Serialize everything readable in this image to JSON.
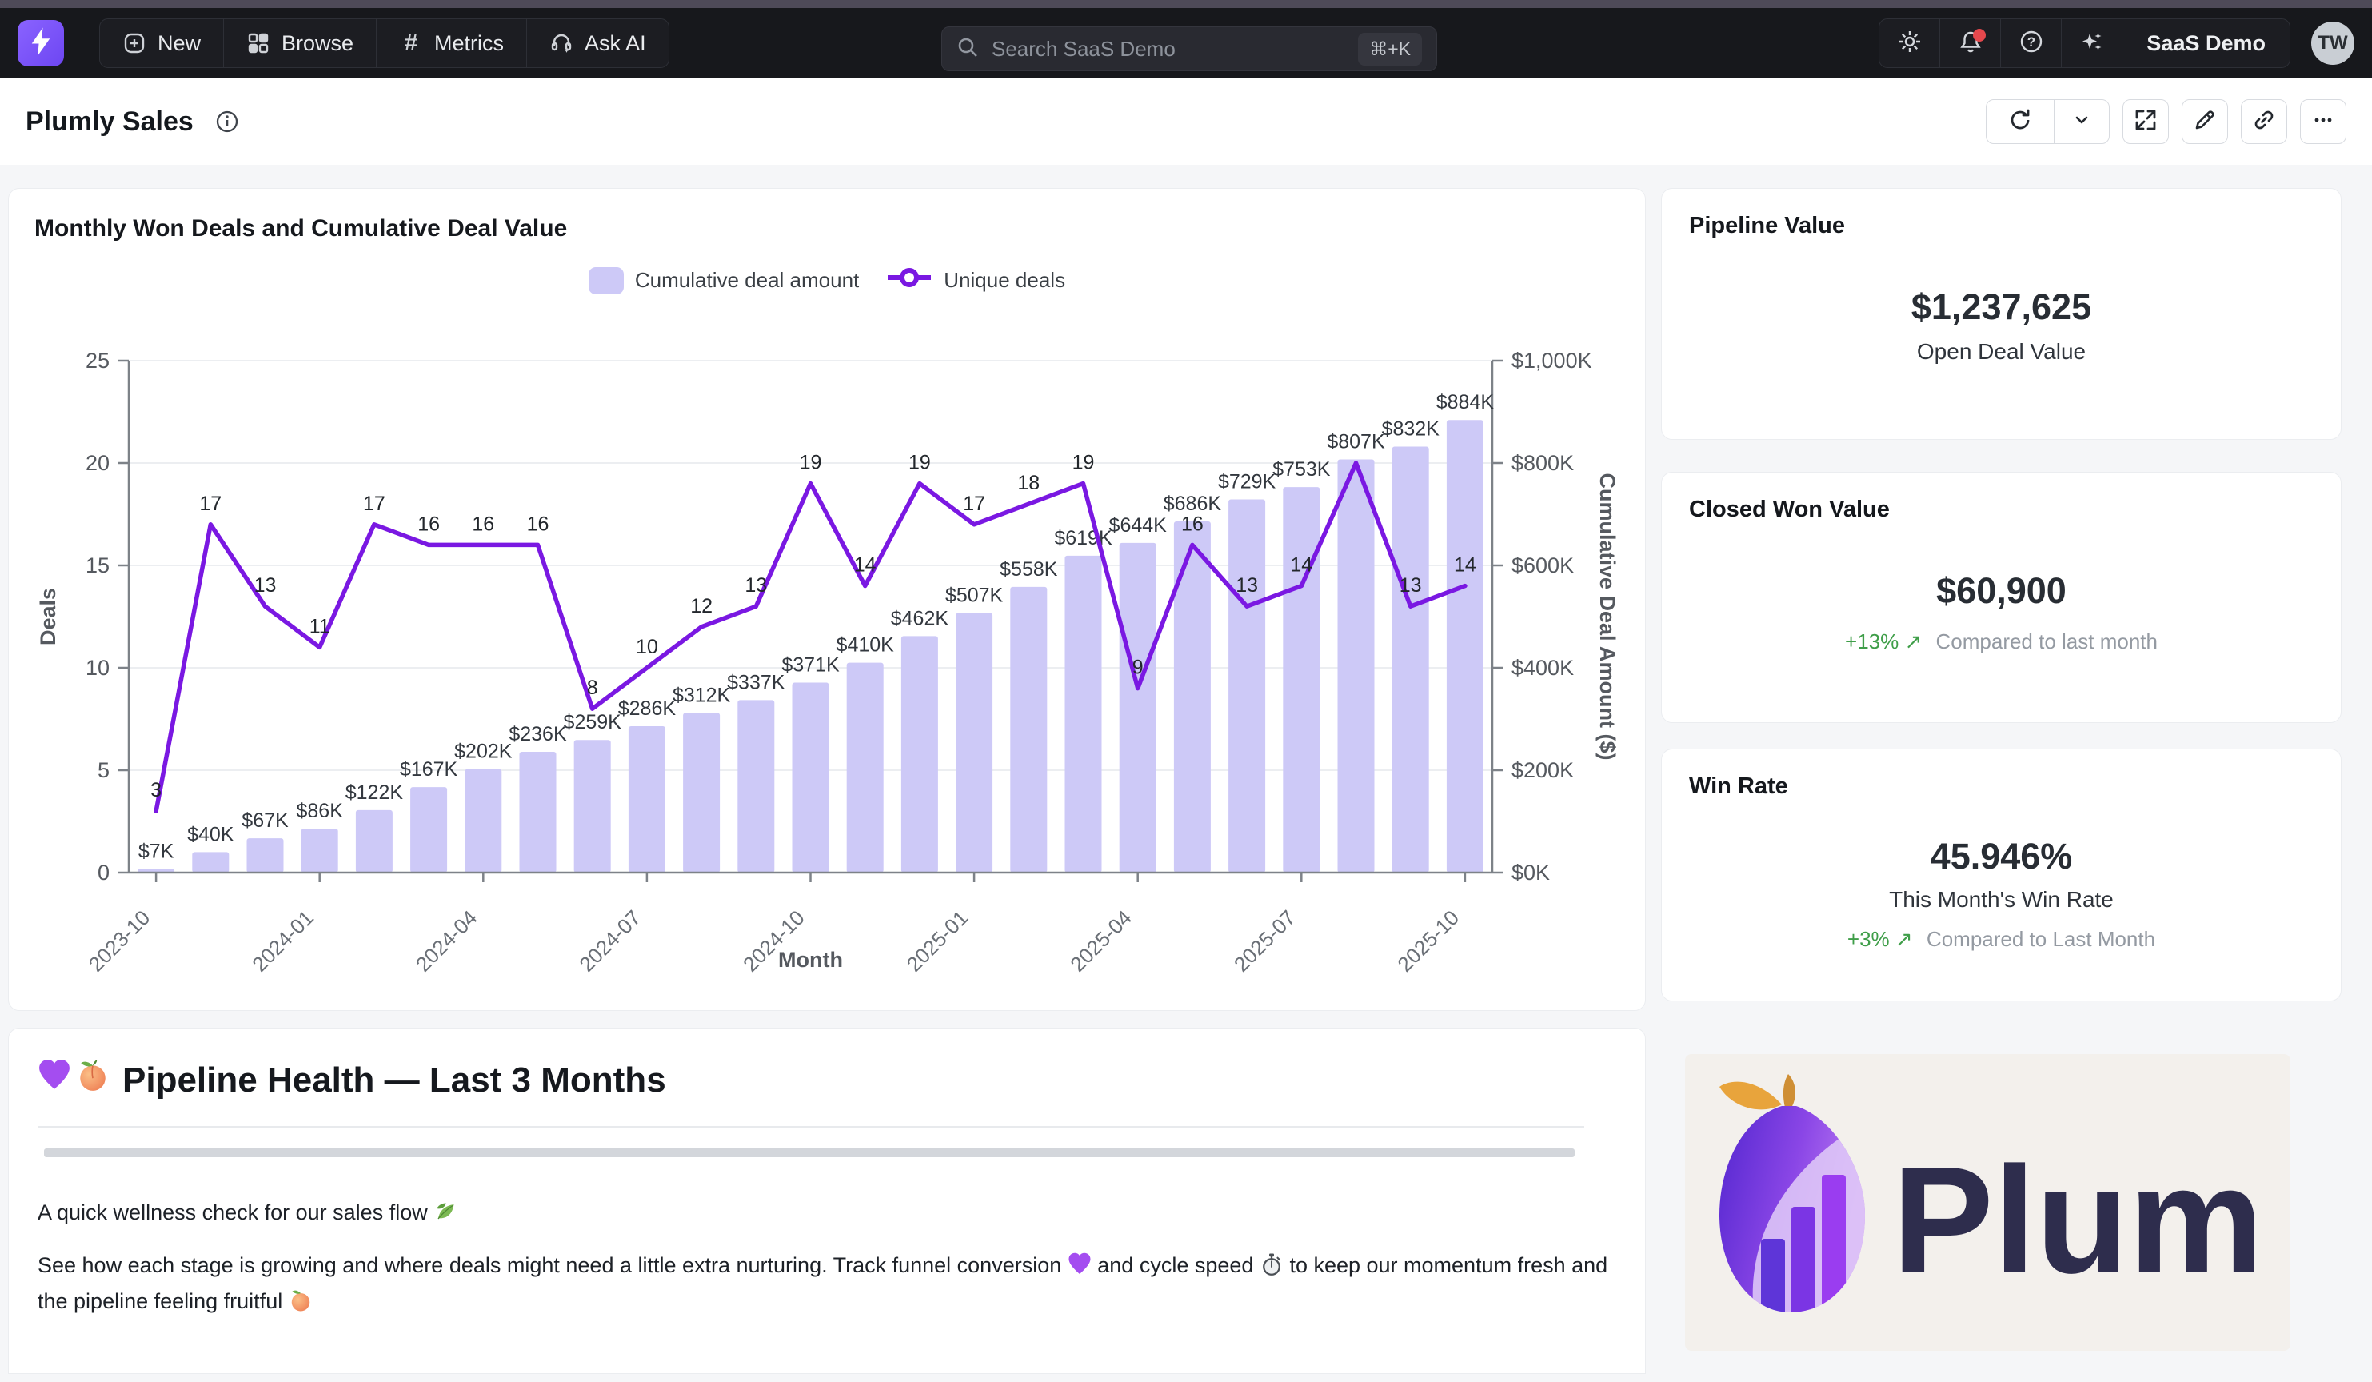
{
  "topbar": {
    "nav_items": [
      {
        "label": "New",
        "icon": "plus-square-icon"
      },
      {
        "label": "Browse",
        "icon": "grid-icon"
      },
      {
        "label": "Metrics",
        "icon": "hash-icon"
      },
      {
        "label": "Ask AI",
        "icon": "headset-sparkle-icon"
      }
    ],
    "hash_glyph": "#",
    "search": {
      "placeholder": "Search SaaS Demo",
      "shortcut": "⌘+K"
    },
    "workspace_label": "SaaS Demo",
    "avatar_initials": "TW"
  },
  "header": {
    "title": "Plumly Sales"
  },
  "chart_data": {
    "type": "bar+line combo",
    "title": "Monthly Won Deals and Cumulative Deal Value",
    "legend": [
      {
        "label": "Cumulative deal amount",
        "marker": "bar-swatch",
        "color": "#cdc9f7"
      },
      {
        "label": "Unique deals",
        "marker": "line-circle",
        "color": "#7a18e2"
      }
    ],
    "x": [
      "2023-10",
      "2023-11",
      "2023-12",
      "2024-01",
      "2024-02",
      "2024-03",
      "2024-04",
      "2024-05",
      "2024-06",
      "2024-07",
      "2024-08",
      "2024-09",
      "2024-10",
      "2024-11",
      "2024-12",
      "2025-01",
      "2025-02",
      "2025-03",
      "2025-04",
      "2025-05",
      "2025-06",
      "2025-07",
      "2025-08",
      "2025-09",
      "2025-10"
    ],
    "x_tick_every": 3,
    "xlabel": "Month",
    "series": [
      {
        "name": "Cumulative deal amount",
        "type": "bar",
        "axis": "right",
        "values_k": [
          7,
          40,
          67,
          86,
          122,
          167,
          202,
          236,
          259,
          286,
          312,
          337,
          371,
          410,
          462,
          507,
          558,
          619,
          644,
          686,
          729,
          753,
          807,
          832,
          884
        ],
        "label_prefix": "$",
        "label_suffix": "K"
      },
      {
        "name": "Unique deals",
        "type": "line",
        "axis": "left",
        "values": [
          3,
          17,
          13,
          11,
          17,
          16,
          16,
          16,
          8,
          10,
          12,
          13,
          19,
          14,
          19,
          17,
          18,
          19,
          9,
          16,
          13,
          14,
          20,
          13,
          14
        ],
        "hidden_label_indexes": [
          22
        ]
      }
    ],
    "left_axis": {
      "label": "Deals",
      "min": 0,
      "max": 25,
      "ticks": [
        0,
        5,
        10,
        15,
        20,
        25
      ]
    },
    "right_axis": {
      "label": "Cumulative Deal Amount ($)",
      "min": 0,
      "max": 1000,
      "ticks": [
        0,
        200,
        400,
        600,
        800,
        1000
      ],
      "tick_labels": [
        "$0K",
        "$200K",
        "$400K",
        "$600K",
        "$800K",
        "$1,000K"
      ]
    },
    "grid": "horizontal",
    "legend_position": "top-center",
    "colors": {
      "bar": "#cdc9f7",
      "line": "#7a18e2",
      "axis": "#7d8288",
      "grid": "#eceef1",
      "tick_text": "#55595f",
      "bar_label": "#33383f",
      "line_label": "#23272c"
    }
  },
  "kpis": [
    {
      "title": "Pipeline Value",
      "value": "$1,237,625",
      "subtitle": "Open Deal Value"
    },
    {
      "title": "Closed Won Value",
      "value": "$60,900",
      "delta": "+13% ↗",
      "compare": "Compared to last month"
    },
    {
      "title": "Win Rate",
      "value": "45.946%",
      "subtitle": "This Month's Win Rate",
      "delta": "+3% ↗",
      "compare": "Compared to Last Month"
    }
  ],
  "pipeline_health": {
    "heading": "Pipeline Health — Last 3 Months",
    "heading_emojis": [
      "purple-heart",
      "peach"
    ],
    "p1_text": "A quick wellness check for our sales flow",
    "p1_emoji": "leaf",
    "p2_part1": "See how each stage is growing and where deals might need a little extra nurturing. Track funnel conversion",
    "p2_emoji1": "purple-heart",
    "p2_part2": "and cycle speed",
    "p2_emoji2": "stopwatch",
    "p2_part3": "to keep our momentum fresh and the pipeline feeling fruitful",
    "p2_emoji3": "peach"
  },
  "brand": {
    "wordmark": "Plumly"
  },
  "colors": {
    "accent_purple": "#7a18e2",
    "bar_lavender": "#cdc9f7",
    "positive_green": "#3f9e49",
    "notification_red": "#e5484d",
    "nav_bg": "#17181c"
  }
}
